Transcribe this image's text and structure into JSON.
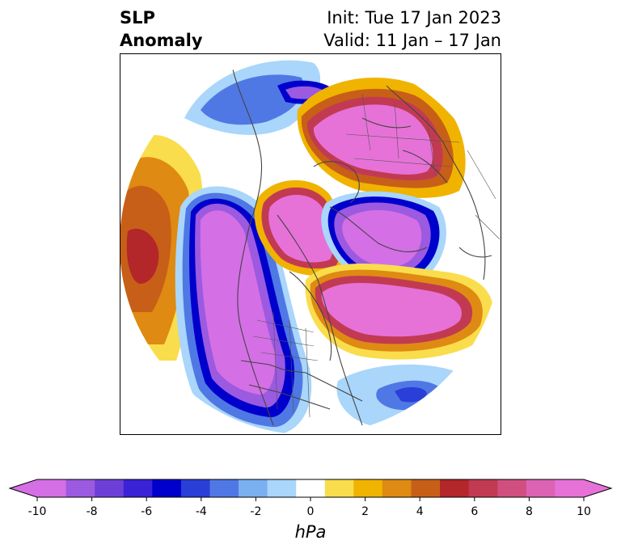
{
  "title": {
    "left_line1": "SLP",
    "left_line2": "Anomaly",
    "right_line1": "Init: Tue 17 Jan 2023",
    "right_line2": "Valid: 11 Jan – 17 Jan"
  },
  "map": {
    "projection": "north-polar",
    "field": "SLP Anomaly",
    "features": [
      "coastlines",
      "country borders",
      "state/province borders"
    ]
  },
  "colorbar": {
    "units": "hPa",
    "extend": "both",
    "tick_labels": [
      "-10",
      "-8",
      "-6",
      "-4",
      "-2",
      "0",
      "2",
      "4",
      "6",
      "8",
      "10"
    ],
    "levels": [
      -10,
      -9,
      -8,
      -7,
      -6,
      -5,
      -4,
      -3,
      -2,
      -1,
      1,
      2,
      3,
      4,
      5,
      6,
      7,
      8,
      9,
      10
    ],
    "colors": [
      "#d46fe6",
      "#9b5ae0",
      "#6e3fd8",
      "#3a22d6",
      "#0000cc",
      "#2a3ed8",
      "#4f78e4",
      "#7ab0f0",
      "#a9d6fa",
      "#ffffff",
      "#f9dd4c",
      "#f0b300",
      "#df8a12",
      "#c75f18",
      "#b3262a",
      "#c23a52",
      "#d04f7e",
      "#dc63b4",
      "#e672d8"
    ],
    "under_color": "#d46fe6",
    "over_color": "#e672d8"
  }
}
